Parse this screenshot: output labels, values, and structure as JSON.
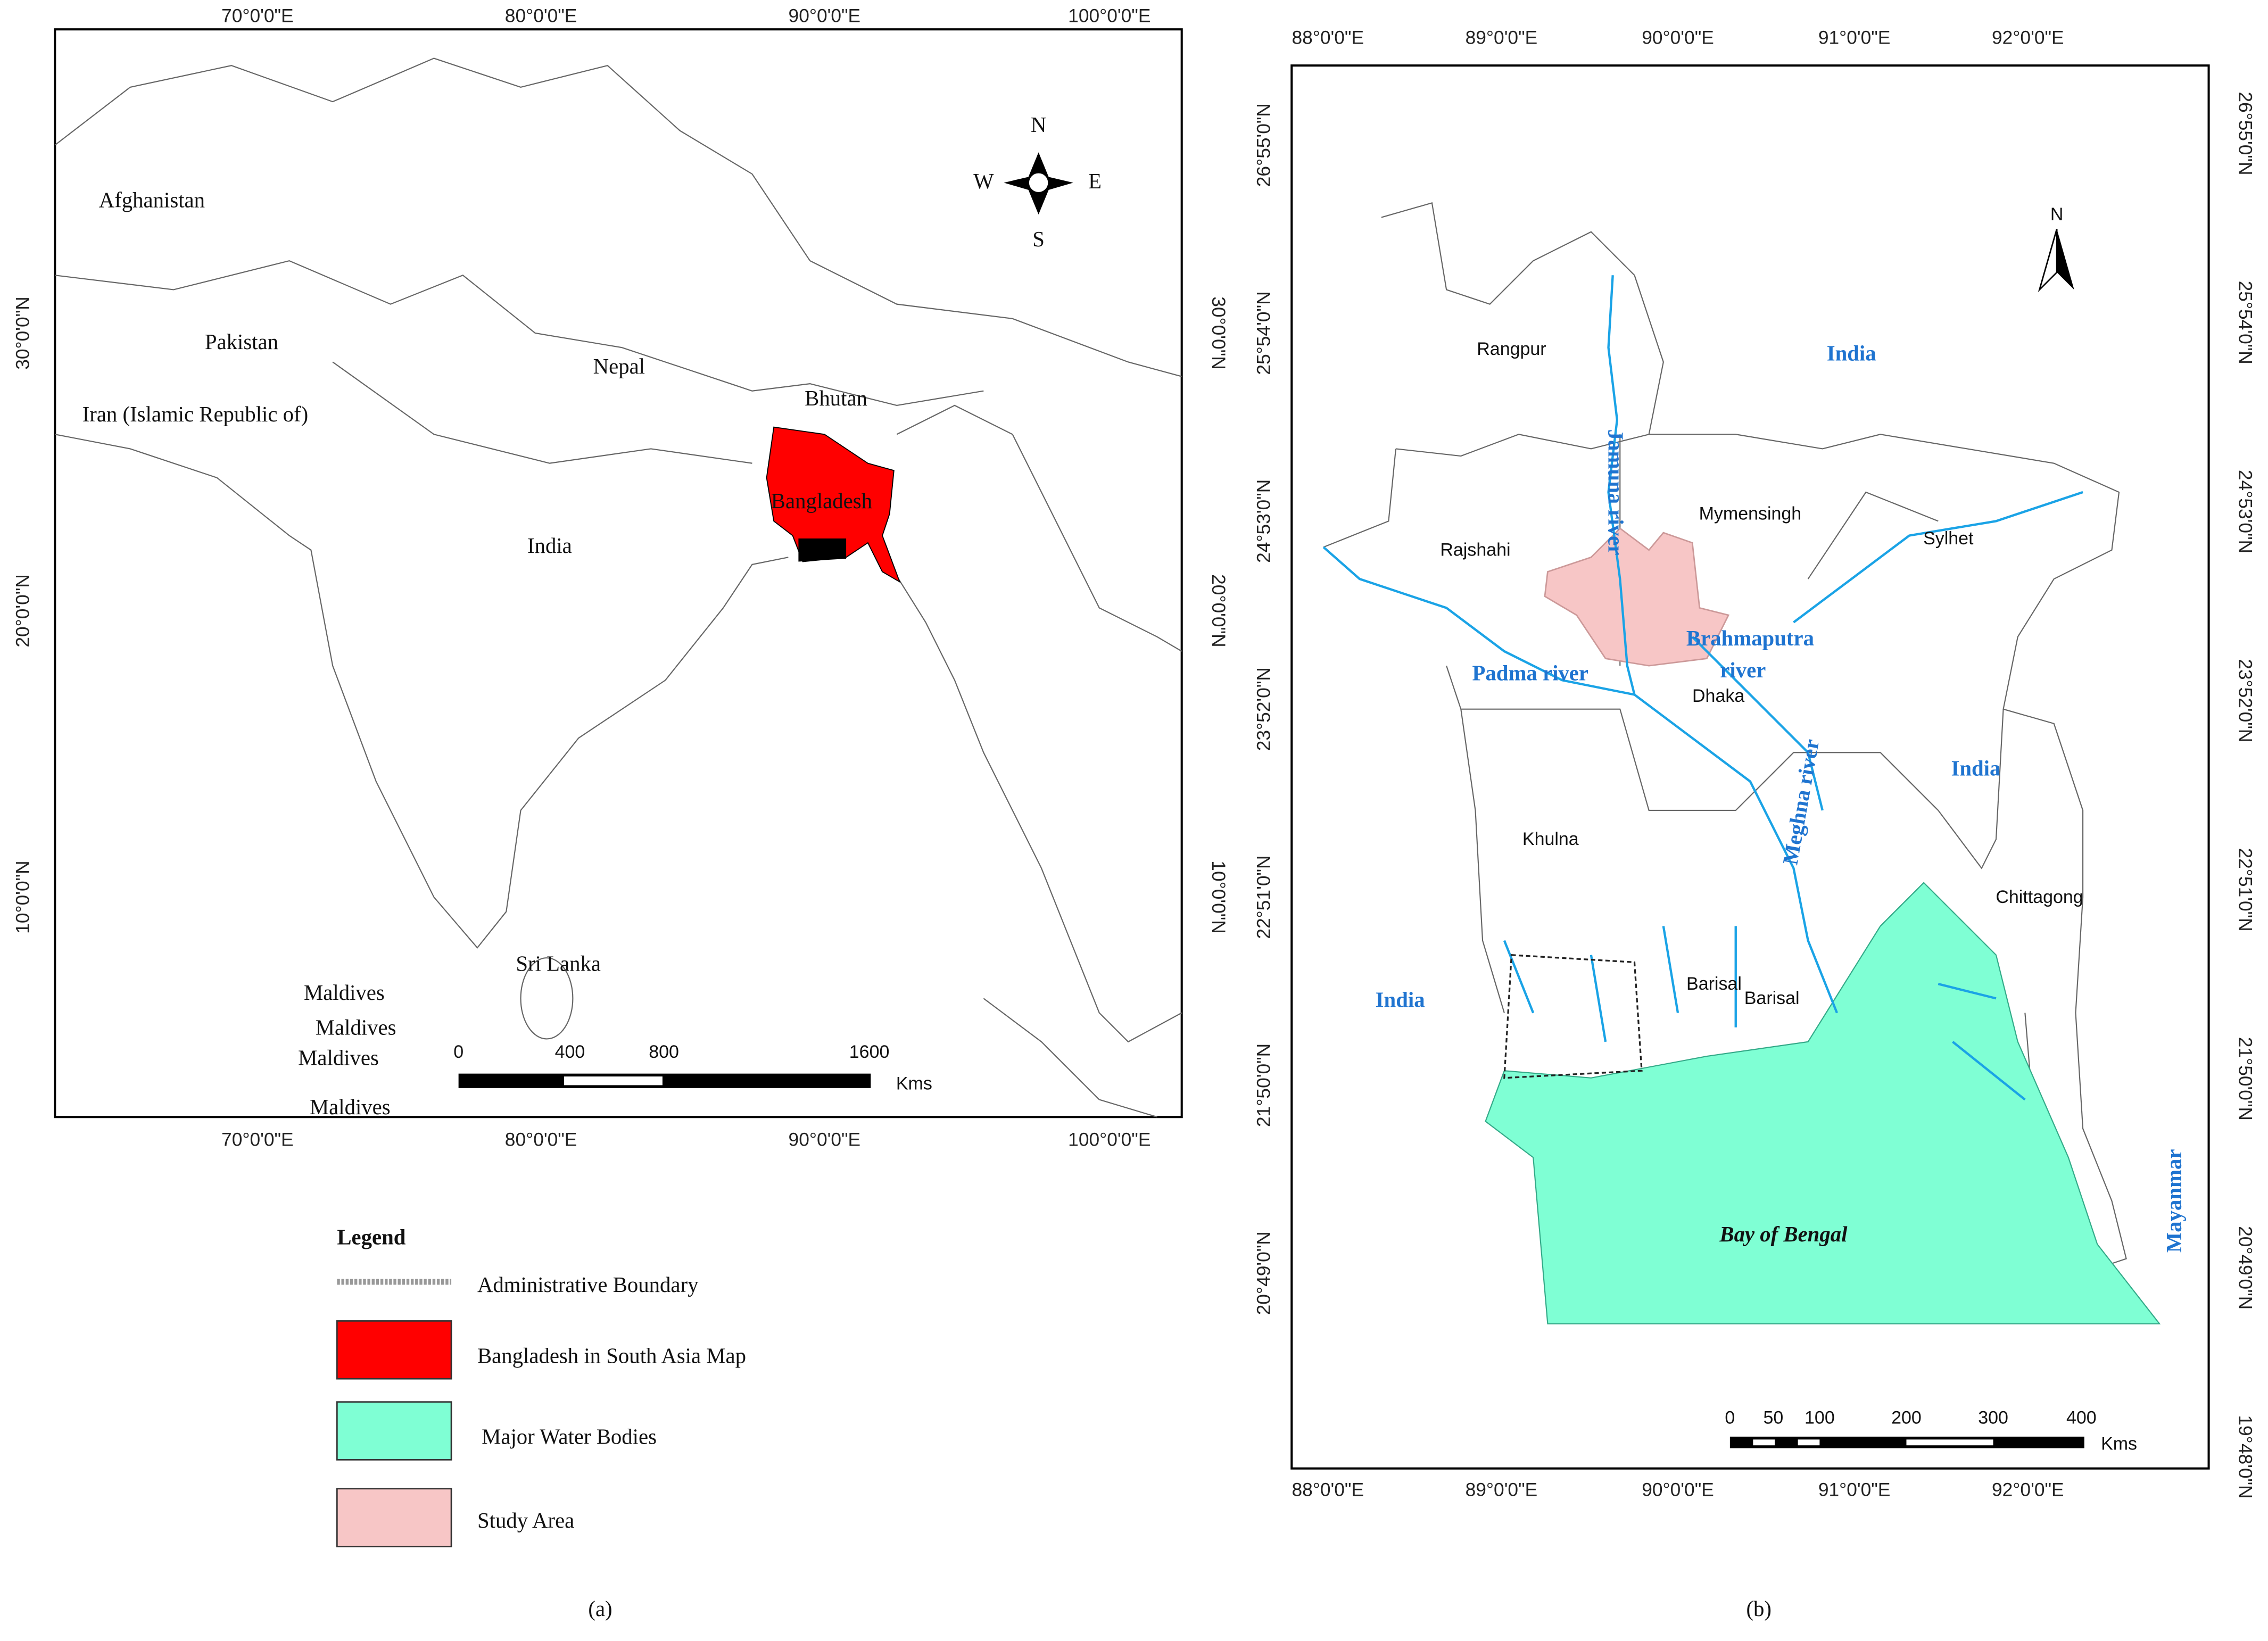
{
  "panel_a": {
    "lon_labels": [
      "70°0'0\"E",
      "80°0'0\"E",
      "90°0'0\"E",
      "100°0'0\"E"
    ],
    "lat_labels": [
      "30°0'0\"N",
      "20°0'0\"N",
      "10°0'0\"N"
    ],
    "places": [
      "Afghanistan",
      "Pakistan",
      "Iran (Islamic Republic of)",
      "Nepal",
      "Bhutan",
      "Bangladesh",
      "India",
      "Sri Lanka",
      "Maldives",
      "Maldives",
      "Maldives",
      "Maldives"
    ],
    "compass": {
      "n": "N",
      "s": "S",
      "e": "E",
      "w": "W"
    },
    "scale": {
      "labels": [
        "0",
        "400",
        "800",
        "1600"
      ],
      "unit": "Kms"
    },
    "caption": "(a)"
  },
  "legend": {
    "title": "Legend",
    "items": [
      "Administrative Boundary",
      "Bangladesh in South Asia Map",
      "Major Water Bodies",
      "Study Area"
    ]
  },
  "panel_b": {
    "lon_labels": [
      "88°0'0\"E",
      "89°0'0\"E",
      "90°0'0\"E",
      "91°0'0\"E",
      "92°0'0\"E"
    ],
    "lat_labels_left": [
      "26°55'0\"N",
      "25°54'0\"N",
      "24°53'0\"N",
      "23°52'0\"N",
      "22°51'0\"N",
      "21°50'0\"N",
      "20°49'0\"N"
    ],
    "lat_labels_right": [
      "26°55'0\"N",
      "25°54'0\"N",
      "24°53'0\"N",
      "23°52'0\"N",
      "22°51'0\"N",
      "21°50'0\"N",
      "20°49'0\"N",
      "19°48'0\"N"
    ],
    "places": [
      "Rangpur",
      "Rajshahi",
      "Mymensingh",
      "Sylhet",
      "Dhaka",
      "Khulna",
      "Chittagong",
      "Barisal",
      "Barisal"
    ],
    "countries": [
      "India",
      "India",
      "India",
      "Mayanmar"
    ],
    "rivers": {
      "jamuna": "Jamuna river",
      "brahmaputra": [
        "Brahmaputra",
        "river"
      ],
      "padma": "Padma river",
      "meghna": "Meghna river"
    },
    "sea": "Bay of Bengal",
    "north": "N",
    "scale": {
      "labels": [
        "0",
        "50",
        "100",
        "200",
        "300",
        "400"
      ],
      "unit": "Kms"
    },
    "caption": "(b)"
  }
}
